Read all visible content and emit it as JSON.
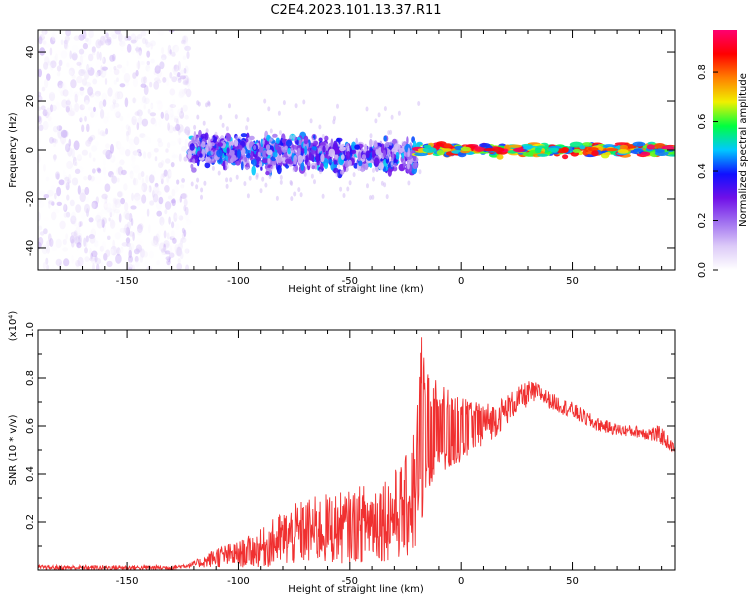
{
  "title": "C2E4.2023.101.13.37.R11",
  "colors": {
    "snr_line": "#f03030",
    "axis": "#000000"
  },
  "chart_data": [
    {
      "type": "heatmap",
      "title": "C2E4.2023.101.13.37.R11",
      "xlabel": "Height of straight line (km)",
      "ylabel": "Frequency (Hz)",
      "xlim": [
        -190,
        96
      ],
      "ylim": [
        -49,
        49
      ],
      "x_ticks": [
        -150,
        -100,
        -50,
        0,
        50
      ],
      "y_ticks": [
        -40,
        -20,
        0,
        20,
        40
      ],
      "colorbar": {
        "label": "Normalized spectral amplitude",
        "range": [
          0,
          0.97
        ],
        "ticks": [
          0.0,
          0.2,
          0.4,
          0.6,
          0.8
        ],
        "colormap": [
          "#ffffff",
          "#dccaf8",
          "#a070f0",
          "#7010e8",
          "#1010ff",
          "#00c8ff",
          "#00ff40",
          "#f0f000",
          "#ff8000",
          "#ff0000",
          "#ff0070"
        ]
      },
      "regions": [
        {
          "x": [
            -190,
            -122
          ],
          "freq": [
            -49,
            49
          ],
          "amplitude": [
            0.0,
            0.15
          ]
        },
        {
          "x": [
            -122,
            -20
          ],
          "freq": [
            -10,
            8
          ],
          "amplitude": [
            0.1,
            0.5
          ]
        },
        {
          "x": [
            -20,
            96
          ],
          "freq": [
            -3,
            3
          ],
          "amplitude": [
            0.4,
            0.97
          ]
        }
      ]
    },
    {
      "type": "line",
      "xlabel": "Height of straight line (km)",
      "ylabel": "SNR (10 * v/v)",
      "y_exponent_label": "(x10⁴)",
      "xlim": [
        -190,
        96
      ],
      "ylim": [
        0,
        1.0
      ],
      "x_ticks": [
        -150,
        -100,
        -50,
        0,
        50
      ],
      "y_ticks": [
        0.2,
        0.4,
        0.6,
        0.8,
        1.0
      ],
      "envelope": {
        "x": [
          -190,
          -160,
          -130,
          -122,
          -115,
          -110,
          -100,
          -90,
          -80,
          -70,
          -60,
          -50,
          -40,
          -30,
          -25,
          -20,
          -18,
          -15,
          -12,
          -10,
          -5,
          0,
          5,
          10,
          15,
          20,
          25,
          30,
          35,
          40,
          50,
          60,
          70,
          80,
          90,
          96
        ],
        "low": [
          0.0,
          0.0,
          0.0,
          0.01,
          0.01,
          0.01,
          0.01,
          0.01,
          0.01,
          0.02,
          0.02,
          0.03,
          0.03,
          0.04,
          0.04,
          0.05,
          0.2,
          0.3,
          0.35,
          0.4,
          0.42,
          0.45,
          0.5,
          0.52,
          0.55,
          0.6,
          0.65,
          0.68,
          0.7,
          0.67,
          0.63,
          0.58,
          0.56,
          0.55,
          0.52,
          0.48
        ],
        "high": [
          0.02,
          0.02,
          0.02,
          0.03,
          0.06,
          0.1,
          0.12,
          0.17,
          0.25,
          0.3,
          0.32,
          0.33,
          0.38,
          0.42,
          0.47,
          0.66,
          1.0,
          0.85,
          0.8,
          0.78,
          0.75,
          0.72,
          0.7,
          0.7,
          0.7,
          0.73,
          0.76,
          0.79,
          0.78,
          0.74,
          0.7,
          0.64,
          0.61,
          0.6,
          0.6,
          0.52
        ]
      }
    }
  ]
}
